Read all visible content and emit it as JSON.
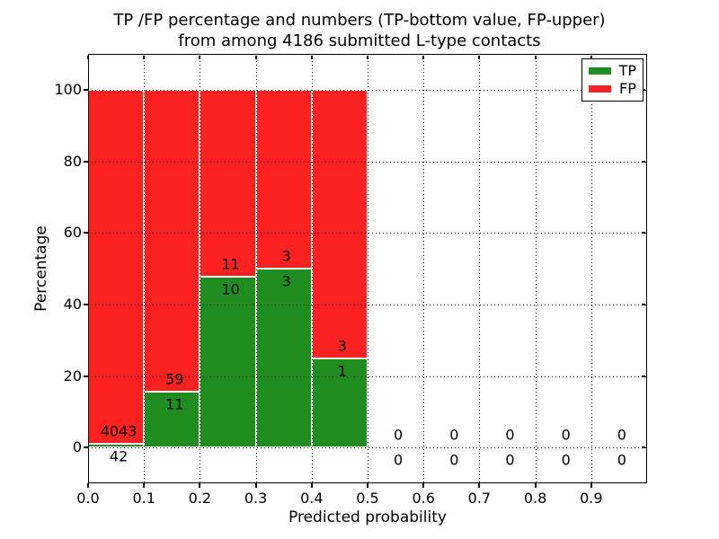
{
  "chart_data": {
    "type": "bar",
    "stacked": true,
    "title": "TP /FP percentage and numbers (TP-bottom value, FP-upper)\nfrom among 4186 submitted L-type contacts",
    "title_lines": [
      "TP /FP percentage and numbers (TP-bottom value, FP-upper)",
      "from among 4186 submitted L-type contacts"
    ],
    "xlabel": "Predicted probability",
    "ylabel": "Percentage",
    "xlim": [
      0.0,
      1.0
    ],
    "ylim": [
      -10,
      110
    ],
    "grid": true,
    "xticks": {
      "values": [
        0.0,
        0.1,
        0.2,
        0.3,
        0.4,
        0.5,
        0.6,
        0.7,
        0.8,
        0.9
      ],
      "labels": [
        "0.0",
        "0.1",
        "0.2",
        "0.3",
        "0.4",
        "0.5",
        "0.6",
        "0.7",
        "0.8",
        "0.9"
      ]
    },
    "yticks": {
      "values": [
        0,
        20,
        40,
        60,
        80,
        100
      ],
      "labels": [
        "0",
        "20",
        "40",
        "60",
        "80",
        "100"
      ]
    },
    "bins": {
      "starts": [
        0.0,
        0.1,
        0.2,
        0.3,
        0.4,
        0.5,
        0.6,
        0.7,
        0.8,
        0.9
      ],
      "width": 0.1
    },
    "series": [
      {
        "name": "TP",
        "position": "bottom",
        "color": "#1e8c1e",
        "counts": [
          42,
          11,
          10,
          3,
          1,
          0,
          0,
          0,
          0,
          0
        ],
        "percents": [
          1.03,
          15.71,
          47.62,
          50.0,
          25.0,
          0,
          0,
          0,
          0,
          0
        ]
      },
      {
        "name": "FP",
        "position": "top",
        "color": "#fc2121",
        "counts": [
          4043,
          59,
          11,
          3,
          3,
          0,
          0,
          0,
          0,
          0
        ],
        "percents": [
          98.97,
          84.29,
          52.38,
          50.0,
          75.0,
          0,
          0,
          0,
          0,
          0
        ]
      }
    ],
    "legend": {
      "position": "upper right",
      "entries": [
        {
          "label": "TP",
          "color": "#1e8c1e"
        },
        {
          "label": "FP",
          "color": "#fc2121"
        }
      ]
    }
  }
}
